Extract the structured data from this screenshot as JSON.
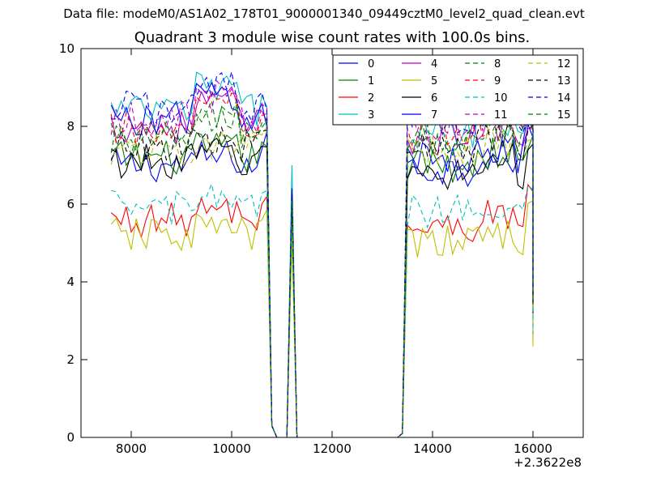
{
  "suptitle": "Data file: modeM0/AS1A02_178T01_9000001340_09449cztM0_level2_quad_clean.evt",
  "chart_data": {
    "type": "line",
    "title": "Quadrant 3 module wise count rates with 100.0s bins.",
    "xlabel": "",
    "ylabel": "",
    "x_offset_label": "+2.3622e8",
    "xlim": [
      7000,
      17000
    ],
    "ylim": [
      0,
      10
    ],
    "xticks": [
      8000,
      10000,
      12000,
      14000,
      16000
    ],
    "yticks": [
      0,
      2,
      4,
      6,
      8,
      10
    ],
    "grid": false,
    "legend": {
      "position": "top-right",
      "columns": 4
    },
    "x_range_covered": [
      7600,
      16000
    ],
    "bin_width_s": 100,
    "series": [
      {
        "name": "0",
        "color": "#0000ff",
        "dash": "solid",
        "level": 7.0,
        "level2": 6.9,
        "spike": 6.3,
        "edge": 8.0
      },
      {
        "name": "1",
        "color": "#008000",
        "dash": "solid",
        "level": 7.2,
        "level2": 7.0,
        "spike": 6.1,
        "edge": 7.6
      },
      {
        "name": "2",
        "color": "#ff0000",
        "dash": "solid",
        "level": 5.6,
        "level2": 5.4,
        "spike": 5.9,
        "edge": 6.3
      },
      {
        "name": "3",
        "color": "#00bfbf",
        "dash": "solid",
        "level": 8.4,
        "level2": 7.9,
        "spike": 7.0,
        "edge": 8.6
      },
      {
        "name": "4",
        "color": "#bf00bf",
        "dash": "solid",
        "level": 8.0,
        "level2": 7.7,
        "spike": 6.2,
        "edge": 8.2
      },
      {
        "name": "5",
        "color": "#bfbf00",
        "dash": "solid",
        "level": 5.2,
        "level2": 5.0,
        "spike": 5.1,
        "edge": 5.9
      },
      {
        "name": "6",
        "color": "#000000",
        "dash": "solid",
        "level": 7.1,
        "level2": 6.8,
        "spike": 6.4,
        "edge": 7.5
      },
      {
        "name": "7",
        "color": "#0000ff",
        "dash": "solid",
        "level": 8.2,
        "level2": 7.2,
        "spike": 6.3,
        "edge": 8.0
      },
      {
        "name": "8",
        "color": "#008000",
        "dash": "dashed",
        "level": 7.7,
        "level2": 7.7,
        "spike": 6.0,
        "edge": 8.2
      },
      {
        "name": "9",
        "color": "#ff0000",
        "dash": "dashed",
        "level": 7.9,
        "level2": 7.8,
        "spike": 6.3,
        "edge": 8.3
      },
      {
        "name": "10",
        "color": "#00bfbf",
        "dash": "dashed",
        "level": 5.9,
        "level2": 5.8,
        "spike": 5.7,
        "edge": 6.3
      },
      {
        "name": "11",
        "color": "#bf00bf",
        "dash": "dashed",
        "level": 8.2,
        "level2": 8.0,
        "spike": 6.1,
        "edge": 8.4
      },
      {
        "name": "12",
        "color": "#bfbf00",
        "dash": "dashed",
        "level": 7.4,
        "level2": 7.3,
        "spike": 6.0,
        "edge": 7.9
      },
      {
        "name": "13",
        "color": "#000000",
        "dash": "dashed",
        "level": 7.5,
        "level2": 7.4,
        "spike": 6.2,
        "edge": 7.8
      },
      {
        "name": "14",
        "color": "#0000ff",
        "dash": "dashed",
        "level": 8.5,
        "level2": 8.2,
        "spike": 6.4,
        "edge": 8.3
      },
      {
        "name": "15",
        "color": "#008000",
        "dash": "dashed",
        "level": 7.6,
        "level2": 7.6,
        "spike": 6.1,
        "edge": 8.0
      }
    ]
  }
}
